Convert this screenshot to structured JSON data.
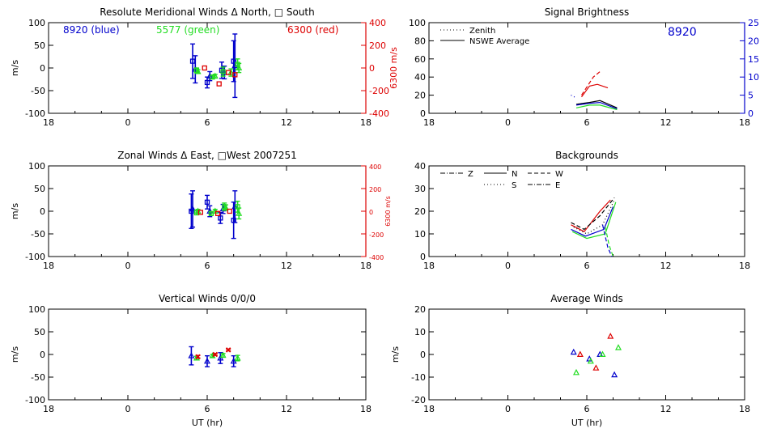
{
  "colors": {
    "black": "#000000",
    "blue": "#0000cc",
    "green": "#22dd22",
    "red": "#dd0000"
  },
  "chart_data": [
    {
      "id": "meridional",
      "type": "scatter",
      "title": "Resolute Meridional Winds Δ North, □ South",
      "ylabel": "m/s",
      "right_ylabel": "6300 m/s",
      "xlabel": "",
      "ylim": [
        -100,
        100
      ],
      "right_ylim": [
        -400,
        400
      ],
      "xticks": [
        "18",
        "0",
        "6",
        "12",
        "18"
      ],
      "yticks": [
        "100",
        "50",
        "0",
        "-50",
        "-100"
      ],
      "right_yticks": [
        "400",
        "200",
        "0",
        "-200",
        "-400"
      ],
      "annotations": [
        "8920 (blue)",
        "5577 (green)",
        "6300 (red)"
      ],
      "series": [
        {
          "color": "blue",
          "points": [
            {
              "x": 4.9,
              "y": 15,
              "err": 38,
              "m": "square"
            },
            {
              "x": 5.1,
              "y": -3,
              "err": 30,
              "m": "triangle"
            },
            {
              "x": 6.0,
              "y": -32,
              "err": 12,
              "m": "square"
            },
            {
              "x": 6.2,
              "y": -18,
              "err": 10,
              "m": "triangle"
            },
            {
              "x": 7.1,
              "y": -5,
              "err": 18,
              "m": "square"
            },
            {
              "x": 7.3,
              "y": -10,
              "err": 14,
              "m": "triangle"
            },
            {
              "x": 8.0,
              "y": 15,
              "err": 45,
              "m": "square"
            },
            {
              "x": 8.1,
              "y": 5,
              "err": 70,
              "m": "triangle"
            }
          ]
        },
        {
          "color": "green",
          "points": [
            {
              "x": 5.2,
              "y": -5,
              "err": 5,
              "m": "square"
            },
            {
              "x": 5.3,
              "y": -8,
              "err": 4,
              "m": "triangle"
            },
            {
              "x": 6.4,
              "y": -20,
              "err": 4,
              "m": "square"
            },
            {
              "x": 6.6,
              "y": -18,
              "err": 4,
              "m": "triangle"
            },
            {
              "x": 7.2,
              "y": -8,
              "err": 10,
              "m": "square"
            },
            {
              "x": 7.8,
              "y": -10,
              "err": 8,
              "m": "triangle"
            },
            {
              "x": 8.3,
              "y": 8,
              "err": 12,
              "m": "square"
            },
            {
              "x": 8.4,
              "y": 0,
              "err": 10,
              "m": "triangle"
            }
          ]
        },
        {
          "color": "red",
          "right_axis": true,
          "points": [
            {
              "x": 5.8,
              "y": 0,
              "err": 0,
              "m": "square"
            },
            {
              "x": 6.9,
              "y": -140,
              "err": 0,
              "m": "square"
            },
            {
              "x": 7.6,
              "y": -40,
              "err": 0,
              "m": "square"
            },
            {
              "x": 8.1,
              "y": -60,
              "err": 0,
              "m": "square"
            }
          ]
        }
      ]
    },
    {
      "id": "zonal",
      "type": "scatter",
      "title": "Zonal Winds Δ East, □West 2007251",
      "ylabel": "m/s",
      "right_ylabel": "6300 m/s",
      "xlabel": "",
      "ylim": [
        -100,
        100
      ],
      "right_ylim": [
        -400,
        400
      ],
      "xticks": [
        "18",
        "0",
        "6",
        "12",
        "18"
      ],
      "yticks": [
        "100",
        "50",
        "0",
        "-50",
        "-100"
      ],
      "right_yticks": [
        "400",
        "200",
        "0",
        "-200",
        "-400"
      ],
      "series": [
        {
          "color": "blue",
          "points": [
            {
              "x": 4.8,
              "y": 0,
              "err": 38,
              "m": "square"
            },
            {
              "x": 4.9,
              "y": 5,
              "err": 40,
              "m": "triangle"
            },
            {
              "x": 6.0,
              "y": 20,
              "err": 15,
              "m": "square"
            },
            {
              "x": 6.2,
              "y": 0,
              "err": 12,
              "m": "triangle"
            },
            {
              "x": 7.0,
              "y": -15,
              "err": 12,
              "m": "square"
            },
            {
              "x": 7.2,
              "y": 5,
              "err": 10,
              "m": "triangle"
            },
            {
              "x": 8.0,
              "y": -20,
              "err": 40,
              "m": "square"
            },
            {
              "x": 8.1,
              "y": 10,
              "err": 35,
              "m": "triangle"
            }
          ]
        },
        {
          "color": "green",
          "points": [
            {
              "x": 5.2,
              "y": -3,
              "err": 5,
              "m": "square"
            },
            {
              "x": 5.3,
              "y": 0,
              "err": 4,
              "m": "triangle"
            },
            {
              "x": 6.3,
              "y": -5,
              "err": 4,
              "m": "square"
            },
            {
              "x": 6.6,
              "y": 0,
              "err": 4,
              "m": "triangle"
            },
            {
              "x": 7.3,
              "y": 10,
              "err": 8,
              "m": "square"
            },
            {
              "x": 7.4,
              "y": 8,
              "err": 6,
              "m": "triangle"
            },
            {
              "x": 8.3,
              "y": 10,
              "err": 12,
              "m": "square"
            },
            {
              "x": 8.4,
              "y": -5,
              "err": 12,
              "m": "triangle"
            }
          ]
        },
        {
          "color": "red",
          "right_axis": true,
          "points": [
            {
              "x": 5.5,
              "y": -10,
              "err": 0,
              "m": "square"
            },
            {
              "x": 6.8,
              "y": -20,
              "err": 0,
              "m": "square"
            },
            {
              "x": 7.7,
              "y": 0,
              "err": 0,
              "m": "square"
            }
          ]
        }
      ]
    },
    {
      "id": "vertical",
      "type": "scatter",
      "title": "Vertical Winds 0/0/0",
      "ylabel": "m/s",
      "xlabel": "UT (hr)",
      "ylim": [
        -100,
        100
      ],
      "xticks": [
        "18",
        "0",
        "6",
        "12",
        "18"
      ],
      "yticks": [
        "100",
        "50",
        "0",
        "-50",
        "-100"
      ],
      "series": [
        {
          "color": "blue",
          "points": [
            {
              "x": 4.8,
              "y": -3,
              "err": 20,
              "m": "triangle"
            },
            {
              "x": 6.0,
              "y": -15,
              "err": 12,
              "m": "triangle"
            },
            {
              "x": 7.0,
              "y": -8,
              "err": 12,
              "m": "triangle"
            },
            {
              "x": 8.0,
              "y": -15,
              "err": 12,
              "m": "triangle"
            }
          ]
        },
        {
          "color": "green",
          "points": [
            {
              "x": 5.2,
              "y": -8,
              "err": 4,
              "m": "triangle"
            },
            {
              "x": 6.4,
              "y": -3,
              "err": 3,
              "m": "triangle"
            },
            {
              "x": 7.2,
              "y": -2,
              "err": 4,
              "m": "triangle"
            },
            {
              "x": 8.3,
              "y": -8,
              "err": 6,
              "m": "triangle"
            }
          ]
        },
        {
          "color": "red",
          "points": [
            {
              "x": 5.3,
              "y": -5,
              "err": 3,
              "m": "cross"
            },
            {
              "x": 6.6,
              "y": 0,
              "err": 2,
              "m": "cross"
            },
            {
              "x": 7.6,
              "y": 10,
              "err": 2,
              "m": "cross"
            }
          ]
        }
      ]
    },
    {
      "id": "brightness",
      "type": "line",
      "title": "Signal Brightness",
      "xlabel": "",
      "ylim": [
        0,
        100
      ],
      "right_ylim": [
        0,
        25
      ],
      "xticks": [
        "18",
        "0",
        "6",
        "12",
        "18"
      ],
      "yticks": [
        "100",
        "80",
        "60",
        "40",
        "20",
        "0"
      ],
      "right_yticks": [
        "25",
        "20",
        "15",
        "10",
        "5",
        "0"
      ],
      "annotations": [
        "8920"
      ],
      "legend": [
        "Zenith",
        "NSWE Average"
      ],
      "series": [
        {
          "color": "blue",
          "style": "dotted",
          "points": [
            [
              4.8,
              20
            ],
            [
              5.2,
              17
            ]
          ]
        },
        {
          "color": "black",
          "style": "solid",
          "points": [
            [
              5.2,
              10
            ],
            [
              6.2,
              12
            ],
            [
              7.0,
              14
            ],
            [
              8.3,
              6
            ]
          ]
        },
        {
          "color": "blue",
          "style": "solid",
          "points": [
            [
              5.2,
              9
            ],
            [
              6.2,
              11
            ],
            [
              7.0,
              12
            ],
            [
              8.3,
              5
            ]
          ]
        },
        {
          "color": "green",
          "style": "solid",
          "points": [
            [
              5.2,
              6
            ],
            [
              6.2,
              9
            ],
            [
              7.0,
              9
            ],
            [
              8.3,
              4
            ]
          ]
        },
        {
          "color": "red",
          "style": "solid",
          "points": [
            [
              5.6,
              18
            ],
            [
              6.2,
              30
            ],
            [
              6.8,
              32
            ],
            [
              7.6,
              28
            ]
          ]
        },
        {
          "color": "red",
          "style": "dashed",
          "points": [
            [
              5.6,
              20
            ],
            [
              6.5,
              40
            ],
            [
              7.0,
              46
            ]
          ]
        }
      ]
    },
    {
      "id": "backgrounds",
      "type": "line",
      "title": "Backgrounds",
      "xlabel": "",
      "ylim": [
        0,
        40
      ],
      "xticks": [
        "18",
        "0",
        "6",
        "12",
        "18"
      ],
      "yticks": [
        "40",
        "30",
        "20",
        "10",
        "0"
      ],
      "legend": [
        "Z",
        "N",
        "W",
        "S",
        "E"
      ],
      "series": [
        {
          "color": "red",
          "style": "solid",
          "points": [
            [
              4.8,
              14
            ],
            [
              5.8,
              11
            ],
            [
              7.0,
              20
            ],
            [
              7.8,
              25
            ]
          ]
        },
        {
          "color": "black",
          "style": "dashed",
          "points": [
            [
              4.8,
              15
            ],
            [
              5.8,
              12
            ],
            [
              7.0,
              18
            ],
            [
              8.1,
              26
            ]
          ]
        },
        {
          "color": "blue",
          "style": "solid",
          "points": [
            [
              4.8,
              12
            ],
            [
              5.9,
              9
            ],
            [
              7.3,
              12
            ],
            [
              8.0,
              22
            ]
          ]
        },
        {
          "color": "green",
          "style": "solid",
          "points": [
            [
              4.9,
              11
            ],
            [
              6.0,
              8
            ],
            [
              7.4,
              10
            ],
            [
              8.2,
              24
            ]
          ]
        },
        {
          "color": "black",
          "style": "dotted",
          "points": [
            [
              5.0,
              13
            ],
            [
              6.0,
              10
            ],
            [
              7.2,
              14
            ],
            [
              8.1,
              25
            ]
          ]
        },
        {
          "color": "blue",
          "style": "dashed",
          "points": [
            [
              7.2,
              14
            ],
            [
              7.6,
              4
            ],
            [
              7.9,
              0
            ]
          ]
        },
        {
          "color": "green",
          "style": "dashed",
          "points": [
            [
              7.4,
              13
            ],
            [
              7.7,
              5
            ],
            [
              8.0,
              0
            ]
          ]
        }
      ]
    },
    {
      "id": "average",
      "type": "scatter",
      "title": "Average Winds",
      "ylabel": "m/s",
      "xlabel": "UT (hr)",
      "ylim": [
        -20,
        20
      ],
      "xticks": [
        "18",
        "0",
        "6",
        "12",
        "18"
      ],
      "yticks": [
        "20",
        "10",
        "0",
        "-10",
        "-20"
      ],
      "series": [
        {
          "color": "blue",
          "points": [
            {
              "x": 5.0,
              "y": 1,
              "m": "triangle"
            },
            {
              "x": 6.2,
              "y": -2,
              "m": "triangle"
            },
            {
              "x": 7.0,
              "y": 0,
              "m": "triangle"
            },
            {
              "x": 8.1,
              "y": -9,
              "m": "triangle"
            }
          ]
        },
        {
          "color": "green",
          "points": [
            {
              "x": 5.2,
              "y": -8,
              "m": "triangle"
            },
            {
              "x": 6.3,
              "y": -3,
              "m": "triangle"
            },
            {
              "x": 7.2,
              "y": 0,
              "m": "triangle"
            },
            {
              "x": 8.4,
              "y": 3,
              "m": "triangle"
            }
          ]
        },
        {
          "color": "red",
          "points": [
            {
              "x": 5.5,
              "y": 0,
              "m": "triangle"
            },
            {
              "x": 6.7,
              "y": -6,
              "m": "triangle"
            },
            {
              "x": 7.8,
              "y": 8,
              "m": "triangle"
            }
          ]
        }
      ]
    }
  ]
}
